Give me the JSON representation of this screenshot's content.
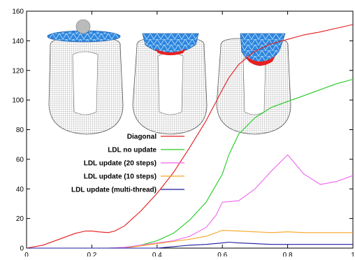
{
  "chart_data": {
    "type": "line",
    "title": "",
    "xlabel": "",
    "ylabel": "",
    "xlim": [
      0,
      1
    ],
    "ylim": [
      0,
      160
    ],
    "x_ticks": [
      0,
      0.2,
      0.4,
      0.6,
      0.8,
      1
    ],
    "x_tick_labels": [
      "0",
      "0.2",
      "0.4",
      "0.6",
      "0.8",
      "1"
    ],
    "y_ticks": [
      0,
      20,
      40,
      60,
      80,
      100,
      120,
      140,
      160
    ],
    "y_tick_labels": [
      "0",
      "20",
      "40",
      "60",
      "80",
      "100",
      "120",
      "140",
      "160"
    ],
    "grid": false,
    "legend_position": "center",
    "series": [
      {
        "name": "Diagonal",
        "color": "#e41a1c",
        "x": [
          0,
          0.05,
          0.1,
          0.15,
          0.18,
          0.2,
          0.22,
          0.25,
          0.27,
          0.3,
          0.35,
          0.4,
          0.45,
          0.5,
          0.55,
          0.6,
          0.62,
          0.65,
          0.7,
          0.75,
          0.8,
          0.85,
          0.9,
          0.95,
          1.0
        ],
        "y": [
          0,
          2,
          6,
          10,
          11.5,
          11.5,
          11,
          10.5,
          11.5,
          15,
          25,
          37,
          51,
          68,
          86,
          107,
          115,
          124,
          133,
          138,
          141,
          144,
          146,
          148.5,
          151
        ]
      },
      {
        "name": "LDL no update",
        "color": "#22cc22",
        "x": [
          0,
          0.25,
          0.3,
          0.35,
          0.4,
          0.45,
          0.5,
          0.55,
          0.6,
          0.62,
          0.65,
          0.7,
          0.75,
          0.8,
          0.85,
          0.9,
          0.95,
          1.0
        ],
        "y": [
          0,
          0,
          0.5,
          2,
          5,
          10,
          19,
          31,
          50,
          63,
          77,
          88,
          95,
          99,
          103,
          107,
          111,
          114
        ]
      },
      {
        "name": "LDL update (20 steps)",
        "color": "#ee66ee",
        "x": [
          0,
          0.25,
          0.3,
          0.35,
          0.4,
          0.45,
          0.5,
          0.55,
          0.58,
          0.6,
          0.65,
          0.7,
          0.75,
          0.8,
          0.85,
          0.9,
          0.95,
          1.0
        ],
        "y": [
          0,
          0,
          0.5,
          2,
          3.5,
          5,
          8,
          14,
          22,
          31,
          32,
          40,
          52,
          63,
          50,
          43,
          45,
          49
        ]
      },
      {
        "name": "LDL update (10 steps)",
        "color": "#f5a623",
        "x": [
          0,
          0.3,
          0.35,
          0.4,
          0.45,
          0.5,
          0.55,
          0.6,
          0.65,
          0.7,
          0.75,
          0.8,
          0.85,
          0.9,
          0.95,
          1.0
        ],
        "y": [
          0,
          0,
          1.5,
          3,
          4.5,
          6,
          8,
          12,
          11.5,
          11,
          10.5,
          11,
          10.5,
          10.5,
          10.5,
          10.5
        ]
      },
      {
        "name": "LDL update (multi-thread)",
        "color": "#1a1aa0",
        "x": [
          0,
          0.4,
          0.45,
          0.5,
          0.55,
          0.6,
          0.62,
          0.65,
          0.7,
          0.75,
          0.8,
          0.85,
          0.9,
          0.95,
          1.0
        ],
        "y": [
          0,
          0,
          1,
          2,
          2.5,
          3.5,
          4,
          3.5,
          3,
          2.5,
          2.5,
          2.5,
          2.5,
          2.5,
          2.5
        ]
      }
    ]
  }
}
